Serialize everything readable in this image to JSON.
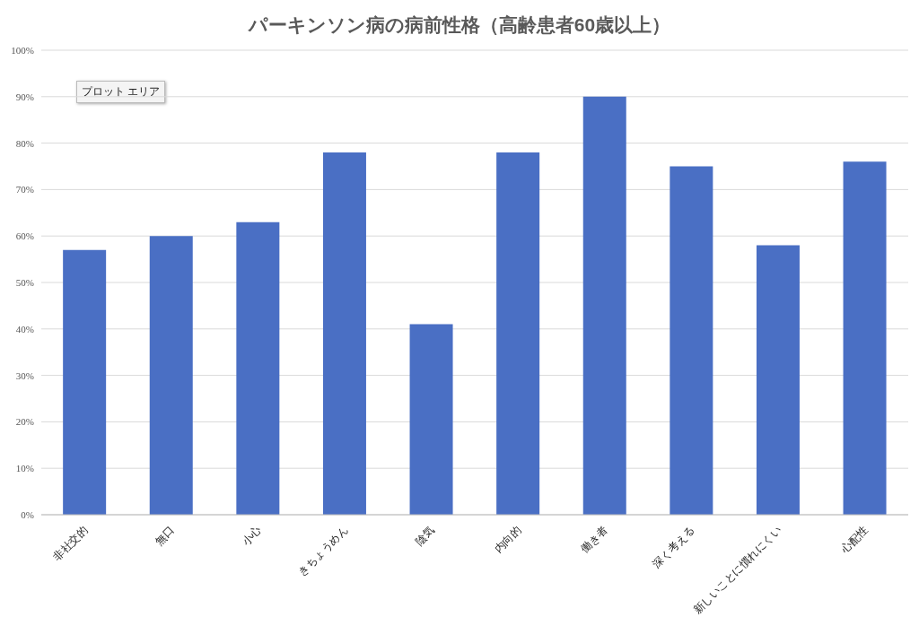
{
  "chart_data": {
    "type": "bar",
    "title": "パーキンソン病の病前性格（高齢患者60歳以上）",
    "categories": [
      "非社交的",
      "無口",
      "小心",
      "きちょうめん",
      "陰気",
      "内向的",
      "働き者",
      "深く考える",
      "新しいことに慣れにくい",
      "心配性"
    ],
    "values": [
      57,
      60,
      63,
      78,
      41,
      78,
      90,
      75,
      58,
      76
    ],
    "color": "#4a6fc4",
    "ylim": [
      0,
      100
    ],
    "yticks": [
      {
        "value": 0,
        "label": "0%"
      },
      {
        "value": 10,
        "label": "10%"
      },
      {
        "value": 20,
        "label": "20%"
      },
      {
        "value": 30,
        "label": "30%"
      },
      {
        "value": 40,
        "label": "40%"
      },
      {
        "value": 50,
        "label": "50%"
      },
      {
        "value": 60,
        "label": "60%"
      },
      {
        "value": 70,
        "label": "70%"
      },
      {
        "value": 80,
        "label": "80%"
      },
      {
        "value": 90,
        "label": "90%"
      },
      {
        "value": 100,
        "label": "100%"
      }
    ],
    "grid": "y",
    "annotations": [
      "プロット エリア"
    ]
  }
}
